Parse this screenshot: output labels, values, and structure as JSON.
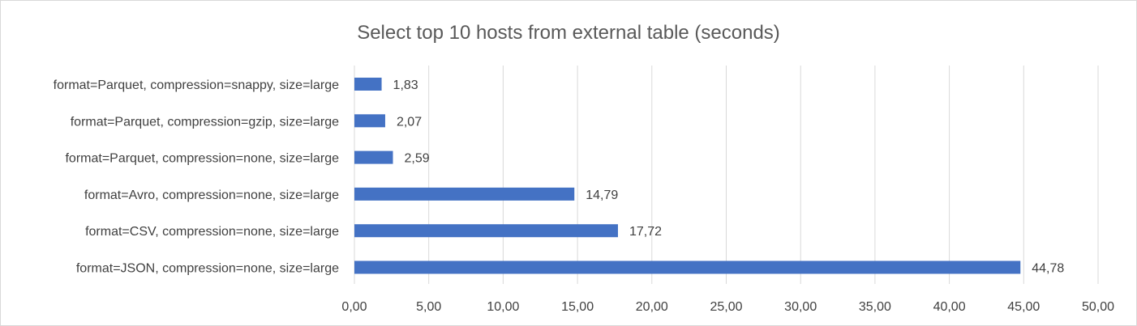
{
  "chart_data": {
    "type": "bar",
    "orientation": "horizontal",
    "title": "Select top 10 hosts from external table (seconds)",
    "xlabel": "",
    "ylabel": "",
    "categories": [
      "format=Parquet, compression=snappy, size=large",
      "format=Parquet, compression=gzip, size=large",
      "format=Parquet, compression=none, size=large",
      "format=Avro, compression=none, size=large",
      "format=CSV, compression=none, size=large",
      "format=JSON, compression=none, size=large"
    ],
    "values": [
      1.83,
      2.07,
      2.59,
      14.79,
      17.72,
      44.78
    ],
    "value_labels": [
      "1,83",
      "2,07",
      "2,59",
      "14,79",
      "17,72",
      "44,78"
    ],
    "xlim": [
      0,
      50
    ],
    "ticks": [
      0,
      5,
      10,
      15,
      20,
      25,
      30,
      35,
      40,
      45,
      50
    ],
    "tick_labels": [
      "0,00",
      "5,00",
      "10,00",
      "15,00",
      "20,00",
      "25,00",
      "30,00",
      "35,00",
      "40,00",
      "45,00",
      "50,00"
    ],
    "grid": "vertical",
    "legend": "none",
    "bar_color": "#4472c4",
    "grid_color": "#d9d9d9",
    "text_color": "#404040",
    "title_color": "#595959"
  }
}
